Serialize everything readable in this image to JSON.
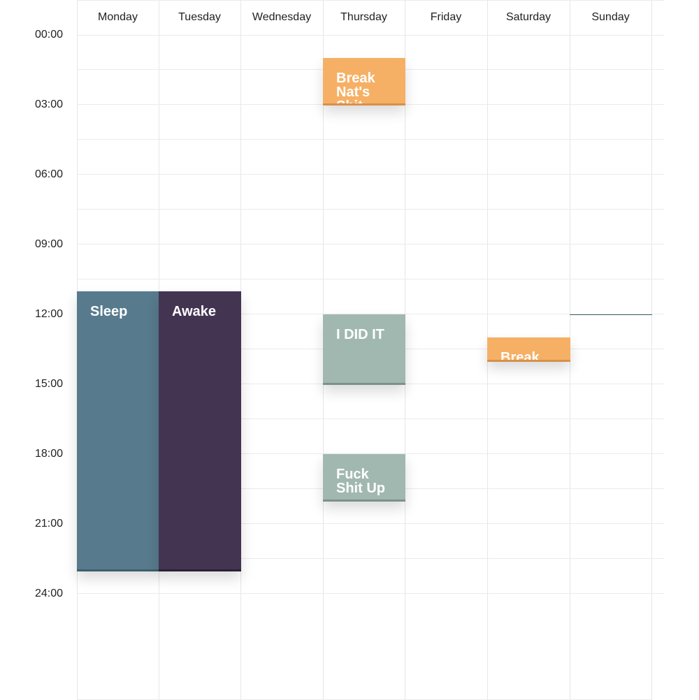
{
  "calendar": {
    "days": [
      "Monday",
      "Tuesday",
      "Wednesday",
      "Thursday",
      "Friday",
      "Saturday",
      "Sunday"
    ],
    "time_labels": [
      "00:00",
      "03:00",
      "06:00",
      "09:00",
      "12:00",
      "15:00",
      "18:00",
      "21:00",
      "24:00"
    ],
    "colors": {
      "orange": "#f6b065",
      "orange_edge": "#d6914a",
      "slate_blue": "#577b8d",
      "slate_blue_edge": "#3e5f6f",
      "dark_purple": "#433552",
      "dark_purple_edge": "#2b2137",
      "sage": "#a1b8b0",
      "sage_edge": "#7d918a"
    },
    "events": [
      {
        "title": "Break Nat's Shit",
        "day": 3,
        "color": "orange"
      },
      {
        "title": "Sleep",
        "day": 0,
        "color": "slate_blue"
      },
      {
        "title": "Awake",
        "day": 1,
        "color": "dark_purple"
      },
      {
        "title": "I DID IT",
        "day": 3,
        "color": "sage"
      },
      {
        "title": "Break Nat's Shit",
        "day": 5,
        "color": "orange"
      },
      {
        "title": "",
        "day": 6,
        "color": "slate_blue"
      },
      {
        "title": "Fuck Shit Up",
        "day": 3,
        "color": "sage"
      }
    ]
  }
}
